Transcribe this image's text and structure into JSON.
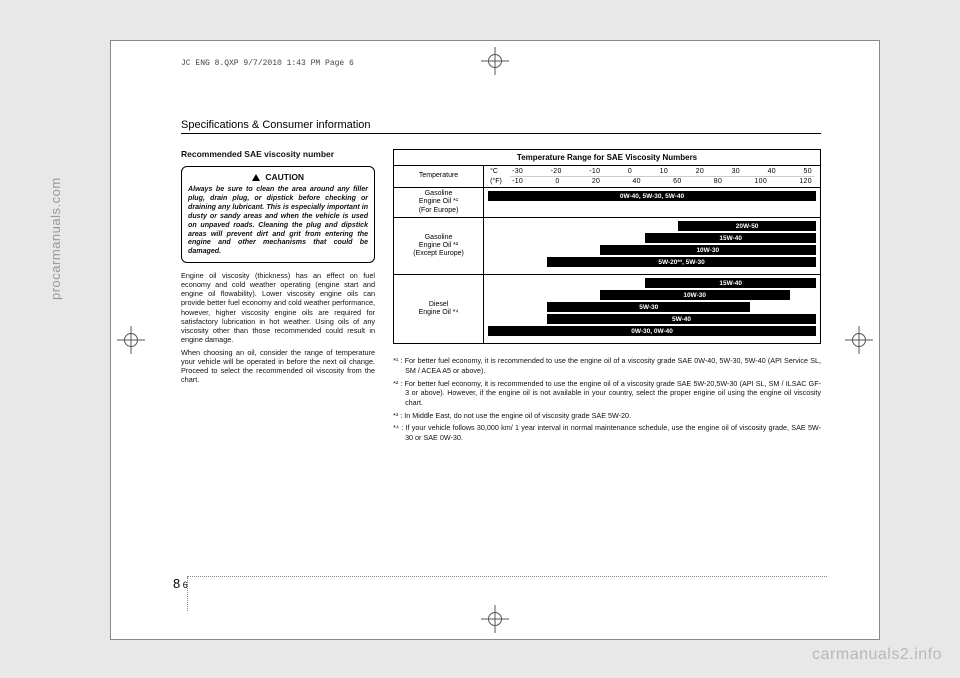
{
  "watermark_left": "procarmanuals.com",
  "watermark_right": "carmanuals2.info",
  "print_header": "JC ENG 8.QXP  9/7/2010  1:43 PM  Page 6",
  "section_title": "Specifications & Consumer information",
  "subhead": "Recommended SAE viscosity number",
  "caution_title": "CAUTION",
  "caution_body": "Always be sure to clean the area around any filler plug, drain plug, or dipstick before checking or draining any lubricant. This is especially important in dusty or sandy areas and when the vehicle is used on unpaved roads. Cleaning the plug and dipstick areas will prevent dirt and grit from entering the engine and other mechanisms that could be damaged.",
  "para1": "Engine oil viscosity (thickness) has an effect on fuel economy and cold weather operating (engine start and engine oil flowability). Lower viscosity engine oils can provide better fuel economy and cold weather performance, however, higher viscosity engine oils are required for satisfactory lubrication in hot weather. Using oils of any viscosity other than those recommended could result in engine damage.",
  "para2": "When choosing an oil, consider the range of temperature your vehicle will be operated in before the next oil change. Proceed to select the recommended oil viscosity from the chart.",
  "chart": {
    "title": "Temperature Range for SAE Viscosity Numbers",
    "temp_label": "Temperature",
    "unit_c": "°C",
    "unit_f": "(°F)",
    "ticks_c": [
      "-30",
      "-20",
      "-10",
      "0",
      "10",
      "20",
      "30",
      "40",
      "50"
    ],
    "ticks_f": [
      "-10",
      "0",
      "20",
      "40",
      "60",
      "80",
      "100",
      "120"
    ],
    "rows": [
      {
        "label": "Gasoline\nEngine Oil *¹\n(For Europe)",
        "bars": [
          {
            "label": "0W-40, 5W-30, 5W-40",
            "left_pct": 0,
            "width_pct": 100
          }
        ]
      },
      {
        "label": "Gasoline\nEngine Oil *²\n(Except Europe)",
        "bars": [
          {
            "label": "20W-50",
            "left_pct": 58,
            "width_pct": 42
          },
          {
            "label": "15W-40",
            "left_pct": 48,
            "width_pct": 52
          },
          {
            "label": "10W-30",
            "left_pct": 34,
            "width_pct": 66
          },
          {
            "label": "5W-20*³, 5W-30",
            "left_pct": 18,
            "width_pct": 82
          }
        ]
      },
      {
        "label": "Diesel\nEngine Oil *⁴",
        "bars": [
          {
            "label": "15W-40",
            "left_pct": 48,
            "width_pct": 52
          },
          {
            "label": "10W-30",
            "left_pct": 34,
            "width_pct": 58
          },
          {
            "label": "5W-30",
            "left_pct": 18,
            "width_pct": 62
          },
          {
            "label": "5W-40",
            "left_pct": 18,
            "width_pct": 82
          },
          {
            "label": "0W-30, 0W-40",
            "left_pct": 0,
            "width_pct": 100
          }
        ]
      }
    ]
  },
  "footnotes": {
    "f1": "*¹ : For better fuel economy, it is recommended to use the engine oil of a viscosity grade SAE 0W-40, 5W-30, 5W-40 (API Service SL, SM / ACEA A5 or above).",
    "f2": "*² : For better fuel economy, it is recommended to use the engine oil of a viscosity grade SAE 5W-20,5W-30 (API SL, SM / ILSAC GF-3 or above). However, if the engine oil is not available in your country, select the proper engine oil using the engine oil viscosity chart.",
    "f3": "*³ : In Middle East, do not use the engine oil of viscosity grade SAE 5W-20.",
    "f4": "*⁴ : If your vehicle follows 30,000 km/ 1 year interval in normal maintenance schedule, use the engine oil of viscosity grade, SAE 5W-30 or SAE 0W-30."
  },
  "page_number_major": "8",
  "page_number_minor": "6"
}
